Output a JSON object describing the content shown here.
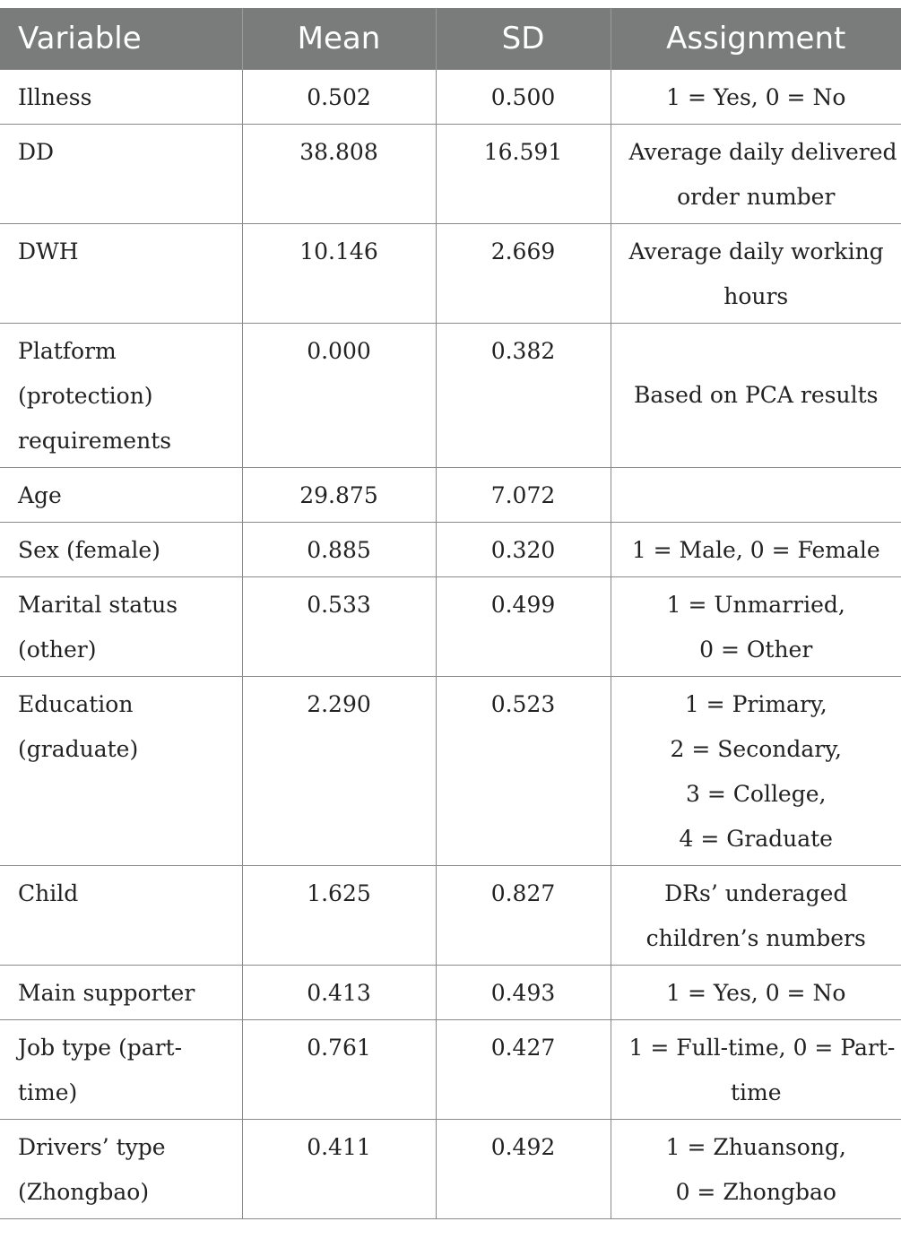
{
  "table": {
    "headers": [
      "Variable",
      "Mean",
      "SD",
      "Assignment"
    ],
    "rows": [
      {
        "variable": [
          "Illness"
        ],
        "mean": "0.502",
        "sd": "0.500",
        "assignment": [
          "1 = Yes, 0 = No"
        ]
      },
      {
        "variable": [
          "DD"
        ],
        "mean": "38.808",
        "sd": "16.591",
        "assignment": [
          "Average daily delivered",
          "order number"
        ]
      },
      {
        "variable": [
          "DWH"
        ],
        "mean": "10.146",
        "sd": "2.669",
        "assignment": [
          "Average daily working",
          "hours"
        ]
      },
      {
        "variable": [
          "Platform",
          "(protection)",
          "requirements"
        ],
        "mean": "0.000",
        "sd": "0.382",
        "assignment": [
          "Based on PCA results"
        ]
      },
      {
        "variable": [
          "Age"
        ],
        "mean": "29.875",
        "sd": "7.072",
        "assignment": []
      },
      {
        "variable": [
          "Sex (female)"
        ],
        "mean": "0.885",
        "sd": "0.320",
        "assignment": [
          "1 = Male, 0 = Female"
        ]
      },
      {
        "variable": [
          "Marital status",
          "(other)"
        ],
        "mean": "0.533",
        "sd": "0.499",
        "assignment": [
          "1 = Unmarried,",
          "0 = Other"
        ]
      },
      {
        "variable": [
          "Education",
          "(graduate)"
        ],
        "mean": "2.290",
        "sd": "0.523",
        "assignment": [
          "1 = Primary,",
          "2 = Secondary,",
          "3 = College,",
          "4 = Graduate"
        ]
      },
      {
        "variable": [
          "Child"
        ],
        "mean": "1.625",
        "sd": "0.827",
        "assignment": [
          "DRs’ underaged",
          "children’s numbers"
        ]
      },
      {
        "variable": [
          "Main supporter"
        ],
        "mean": "0.413",
        "sd": "0.493",
        "assignment": [
          "1 = Yes, 0 = No"
        ]
      },
      {
        "variable": [
          "Job type (part-",
          "time)"
        ],
        "mean": "0.761",
        "sd": "0.427",
        "assignment": [
          "1 = Full-time, 0 = Part-",
          "time"
        ]
      },
      {
        "variable": [
          "Drivers’ type",
          "(Zhongbao)"
        ],
        "mean": "0.411",
        "sd": "0.492",
        "assignment": [
          "1 = Zhuansong,",
          "0 = Zhongbao"
        ]
      }
    ]
  }
}
